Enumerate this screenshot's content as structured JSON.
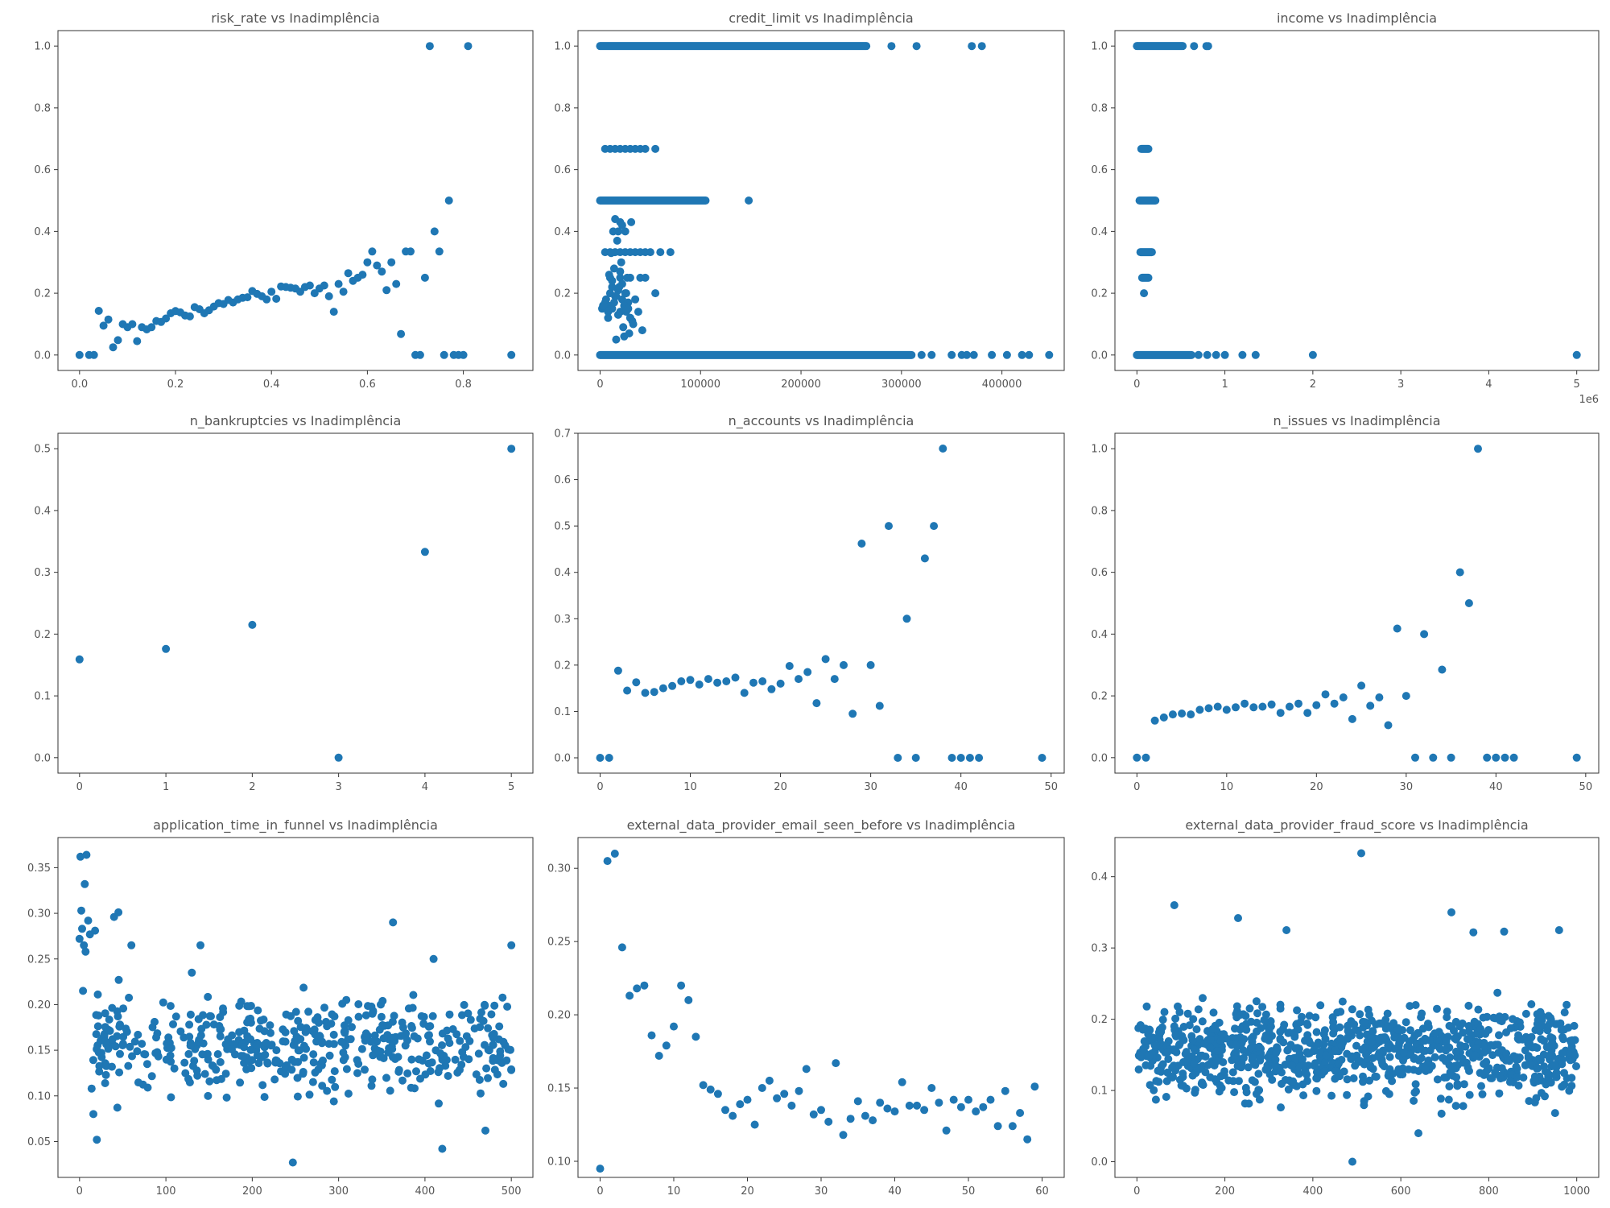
{
  "colors": {
    "marker": "#1f77b4",
    "text": "#555555"
  },
  "chart_data": [
    {
      "type": "scatter",
      "title": "risk_rate vs Inadimplência",
      "xlim": [
        -0.045,
        0.945
      ],
      "ylim": [
        -0.05,
        1.05
      ],
      "xticks": [
        "0.0",
        "0.2",
        "0.4",
        "0.6",
        "0.8"
      ],
      "xtick_values": [
        0,
        0.2,
        0.4,
        0.6,
        0.8
      ],
      "yticks": [
        "0.0",
        "0.2",
        "0.4",
        "0.6",
        "0.8",
        "1.0"
      ],
      "ytick_values": [
        0,
        0.2,
        0.4,
        0.6,
        0.8,
        1.0
      ],
      "x": [
        0,
        0.02,
        0.03,
        0.04,
        0.05,
        0.06,
        0.07,
        0.08,
        0.09,
        0.1,
        0.11,
        0.12,
        0.13,
        0.14,
        0.15,
        0.16,
        0.17,
        0.18,
        0.19,
        0.2,
        0.21,
        0.22,
        0.23,
        0.24,
        0.25,
        0.26,
        0.27,
        0.28,
        0.29,
        0.3,
        0.31,
        0.32,
        0.33,
        0.34,
        0.35,
        0.36,
        0.37,
        0.38,
        0.39,
        0.4,
        0.41,
        0.42,
        0.43,
        0.44,
        0.45,
        0.46,
        0.47,
        0.48,
        0.49,
        0.5,
        0.51,
        0.52,
        0.53,
        0.54,
        0.55,
        0.56,
        0.57,
        0.58,
        0.59,
        0.6,
        0.61,
        0.62,
        0.63,
        0.64,
        0.65,
        0.66,
        0.67,
        0.68,
        0.69,
        0.7,
        0.71,
        0.72,
        0.73,
        0.74,
        0.75,
        0.76,
        0.77,
        0.78,
        0.79,
        0.8,
        0.81,
        0.9
      ],
      "y": [
        0,
        0,
        0,
        0.143,
        0.095,
        0.115,
        0.025,
        0.048,
        0.1,
        0.09,
        0.1,
        0.045,
        0.09,
        0.083,
        0.09,
        0.11,
        0.107,
        0.118,
        0.135,
        0.142,
        0.138,
        0.128,
        0.125,
        0.155,
        0.148,
        0.135,
        0.145,
        0.157,
        0.168,
        0.165,
        0.178,
        0.17,
        0.18,
        0.185,
        0.187,
        0.207,
        0.198,
        0.19,
        0.18,
        0.205,
        0.182,
        0.222,
        0.22,
        0.218,
        0.215,
        0.205,
        0.22,
        0.225,
        0.2,
        0.215,
        0.225,
        0.19,
        0.14,
        0.23,
        0.205,
        0.265,
        0.24,
        0.25,
        0.26,
        0.3,
        0.335,
        0.29,
        0.27,
        0.21,
        0.3,
        0.23,
        0.068,
        0.335,
        0.335,
        0,
        0,
        0.25,
        1.0,
        0.4,
        0.335,
        0,
        0.5,
        0,
        0,
        0,
        1.0,
        0
      ]
    },
    {
      "type": "scatter",
      "title": "credit_limit vs Inadimplência",
      "xlim": [
        -22000,
        462000
      ],
      "ylim": [
        -0.05,
        1.05
      ],
      "xticks": [
        "0",
        "100000",
        "200000",
        "300000",
        "400000"
      ],
      "xtick_values": [
        0,
        100000,
        200000,
        300000,
        400000
      ],
      "yticks": [
        "0.0",
        "0.2",
        "0.4",
        "0.6",
        "0.8",
        "1.0"
      ],
      "ytick_values": [
        0,
        0.2,
        0.4,
        0.6,
        0.8,
        1.0
      ],
      "bands": [
        {
          "y": 1.0,
          "x_from": 0,
          "x_to": 265000
        },
        {
          "y": 0.5,
          "x_from": 0,
          "x_to": 105000
        },
        {
          "y": 0.0,
          "x_from": 0,
          "x_to": 310000
        }
      ],
      "x": [
        290000,
        315000,
        370000,
        380000,
        5000,
        10000,
        15000,
        20000,
        25000,
        30000,
        35000,
        40000,
        45000,
        55000,
        148000,
        5000,
        10000,
        15000,
        20000,
        25000,
        30000,
        35000,
        40000,
        45000,
        50000,
        60000,
        70000,
        10000,
        20000,
        30000,
        40000,
        45000,
        13000,
        18000,
        25000,
        15000,
        20000,
        22000,
        55000,
        5000,
        8000,
        12000,
        15000,
        18000,
        20000,
        22000,
        25000,
        28000,
        30000,
        2000,
        4000,
        6000,
        8000,
        10000,
        12000,
        14000,
        16000,
        18000,
        20000,
        22000,
        24000,
        26000,
        28000,
        30000,
        32000,
        3000,
        9000,
        14000,
        21000,
        27000,
        33000,
        11000,
        19000,
        26000,
        38000,
        16000,
        23000,
        42000,
        35000,
        17000,
        31000,
        8000,
        12000,
        24000,
        29000,
        350000,
        360000,
        365000,
        372000,
        390000,
        405000,
        420000,
        427000,
        447000,
        320000,
        330000
      ],
      "y": [
        1,
        1,
        1,
        1,
        0.667,
        0.667,
        0.667,
        0.667,
        0.667,
        0.667,
        0.667,
        0.667,
        0.667,
        0.667,
        0.5,
        0.333,
        0.333,
        0.333,
        0.333,
        0.333,
        0.333,
        0.333,
        0.333,
        0.333,
        0.333,
        0.333,
        0.333,
        0.25,
        0.25,
        0.25,
        0.25,
        0.25,
        0.4,
        0.4,
        0.4,
        0.44,
        0.43,
        0.42,
        0.2,
        0.17,
        0.16,
        0.15,
        0.19,
        0.21,
        0.14,
        0.18,
        0.2,
        0.17,
        0.12,
        0.15,
        0.16,
        0.18,
        0.14,
        0.2,
        0.22,
        0.17,
        0.19,
        0.13,
        0.27,
        0.23,
        0.16,
        0.2,
        0.15,
        0.12,
        0.11,
        0.16,
        0.26,
        0.28,
        0.3,
        0.25,
        0.1,
        0.33,
        0.22,
        0.14,
        0.14,
        0.05,
        0.09,
        0.08,
        0.18,
        0.37,
        0.43,
        0.12,
        0.24,
        0.06,
        0.07,
        0,
        0,
        0,
        0,
        0,
        0,
        0,
        0,
        0,
        0,
        0
      ]
    },
    {
      "type": "scatter",
      "title": "income vs Inadimplência",
      "xlim": [
        -250000,
        5250000
      ],
      "ylim": [
        -0.05,
        1.05
      ],
      "xticks": [
        "0",
        "1",
        "2",
        "3",
        "4",
        "5"
      ],
      "xtick_values": [
        0,
        1000000,
        2000000,
        3000000,
        4000000,
        5000000
      ],
      "xscale_label": "1e6",
      "yticks": [
        "0.0",
        "0.2",
        "0.4",
        "0.6",
        "0.8",
        "1.0"
      ],
      "ytick_values": [
        0,
        0.2,
        0.4,
        0.6,
        0.8,
        1.0
      ],
      "bands": [
        {
          "y": 1.0,
          "x_from": 0,
          "x_to": 520000
        },
        {
          "y": 0.0,
          "x_from": 0,
          "x_to": 620000
        },
        {
          "y": 0.5,
          "x_from": 30000,
          "x_to": 210000
        },
        {
          "y": 0.667,
          "x_from": 50000,
          "x_to": 130000
        },
        {
          "y": 0.333,
          "x_from": 40000,
          "x_to": 170000
        },
        {
          "y": 0.25,
          "x_from": 60000,
          "x_to": 130000
        }
      ],
      "x": [
        650000,
        790000,
        810000,
        80000,
        700000,
        800000,
        900000,
        1000000,
        1200000,
        1350000,
        2000000,
        5000000
      ],
      "y": [
        1,
        1,
        1,
        0.2,
        0,
        0,
        0,
        0,
        0,
        0,
        0,
        0
      ]
    },
    {
      "type": "scatter",
      "title": "n_bankruptcies vs Inadimplência",
      "xlim": [
        -0.25,
        5.25
      ],
      "ylim": [
        -0.025,
        0.525
      ],
      "xticks": [
        "0",
        "1",
        "2",
        "3",
        "4",
        "5"
      ],
      "xtick_values": [
        0,
        1,
        2,
        3,
        4,
        5
      ],
      "yticks": [
        "0.0",
        "0.1",
        "0.2",
        "0.3",
        "0.4",
        "0.5"
      ],
      "ytick_values": [
        0,
        0.1,
        0.2,
        0.3,
        0.4,
        0.5
      ],
      "x": [
        0,
        1,
        2,
        3,
        4,
        5
      ],
      "y": [
        0.159,
        0.176,
        0.215,
        0,
        0.333,
        0.5
      ]
    },
    {
      "type": "scatter",
      "title": "n_accounts vs Inadimplência",
      "xlim": [
        -2.45,
        51.45
      ],
      "ylim": [
        -0.033,
        0.7
      ],
      "xticks": [
        "0",
        "10",
        "20",
        "30",
        "40",
        "50"
      ],
      "xtick_values": [
        0,
        10,
        20,
        30,
        40,
        50
      ],
      "yticks": [
        "0.0",
        "0.1",
        "0.2",
        "0.3",
        "0.4",
        "0.5",
        "0.6",
        "0.7"
      ],
      "ytick_values": [
        0,
        0.1,
        0.2,
        0.3,
        0.4,
        0.5,
        0.6,
        0.7
      ],
      "x": [
        0,
        1,
        2,
        3,
        4,
        5,
        6,
        7,
        8,
        9,
        10,
        11,
        12,
        13,
        14,
        15,
        16,
        17,
        18,
        19,
        20,
        21,
        22,
        23,
        24,
        25,
        26,
        27,
        28,
        29,
        30,
        31,
        32,
        33,
        34,
        35,
        36,
        37,
        38,
        39,
        40,
        41,
        42,
        49
      ],
      "y": [
        0,
        0,
        0.188,
        0.145,
        0.163,
        0.14,
        0.142,
        0.15,
        0.155,
        0.165,
        0.168,
        0.158,
        0.17,
        0.162,
        0.165,
        0.173,
        0.14,
        0.162,
        0.165,
        0.148,
        0.16,
        0.198,
        0.17,
        0.185,
        0.118,
        0.213,
        0.17,
        0.2,
        0.095,
        0.462,
        0.2,
        0.112,
        0.5,
        0,
        0.3,
        0,
        0.43,
        0.5,
        0.667,
        0,
        0,
        0,
        0,
        0
      ]
    },
    {
      "type": "scatter",
      "title": "n_issues vs Inadimplência",
      "xlim": [
        -2.45,
        51.45
      ],
      "ylim": [
        -0.05,
        1.05
      ],
      "xticks": [
        "0",
        "10",
        "20",
        "30",
        "40",
        "50"
      ],
      "xtick_values": [
        0,
        10,
        20,
        30,
        40,
        50
      ],
      "yticks": [
        "0.0",
        "0.2",
        "0.4",
        "0.6",
        "0.8",
        "1.0"
      ],
      "ytick_values": [
        0,
        0.2,
        0.4,
        0.6,
        0.8,
        1.0
      ],
      "x": [
        0,
        1,
        2,
        3,
        4,
        5,
        6,
        7,
        8,
        9,
        10,
        11,
        12,
        13,
        14,
        15,
        16,
        17,
        18,
        19,
        20,
        21,
        22,
        23,
        24,
        25,
        26,
        27,
        28,
        29,
        30,
        31,
        32,
        33,
        34,
        35,
        36,
        37,
        38,
        39,
        40,
        41,
        42,
        49
      ],
      "y": [
        0,
        0,
        0.12,
        0.13,
        0.14,
        0.143,
        0.14,
        0.155,
        0.16,
        0.165,
        0.155,
        0.163,
        0.175,
        0.163,
        0.165,
        0.172,
        0.145,
        0.165,
        0.175,
        0.145,
        0.17,
        0.205,
        0.175,
        0.195,
        0.125,
        0.233,
        0.168,
        0.195,
        0.105,
        0.418,
        0.2,
        0,
        0.4,
        0,
        0.285,
        0,
        0.6,
        0.5,
        1.0,
        0,
        0,
        0,
        0,
        0
      ]
    },
    {
      "type": "scatter",
      "title": "application_time_in_funnel vs Inadimplência",
      "xlim": [
        -25,
        525
      ],
      "ylim": [
        0.0107,
        0.383
      ],
      "xticks": [
        "0",
        "100",
        "200",
        "300",
        "400",
        "500"
      ],
      "xtick_values": [
        0,
        100,
        200,
        300,
        400,
        500
      ],
      "yticks": [
        "0.05",
        "0.10",
        "0.15",
        "0.20",
        "0.25",
        "0.30",
        "0.35"
      ],
      "ytick_values": [
        0.05,
        0.1,
        0.15,
        0.2,
        0.25,
        0.3,
        0.35
      ],
      "cloud": {
        "n": 480,
        "x_from": 10,
        "x_to": 500,
        "y_center": 0.155,
        "y_spread": 0.042,
        "seed": 11
      },
      "x": [
        0,
        1,
        2,
        3,
        4,
        5,
        6,
        7,
        8,
        10,
        12,
        14,
        16,
        18,
        20,
        22,
        40,
        45,
        60,
        130,
        140,
        247,
        363,
        420,
        500,
        470,
        410
      ],
      "y": [
        0.272,
        0.362,
        0.303,
        0.283,
        0.215,
        0.265,
        0.332,
        0.258,
        0.364,
        0.292,
        0.277,
        0.108,
        0.08,
        0.281,
        0.052,
        0.188,
        0.296,
        0.301,
        0.265,
        0.235,
        0.265,
        0.027,
        0.29,
        0.042,
        0.265,
        0.062,
        0.25
      ]
    },
    {
      "type": "scatter",
      "title": "external_data_provider_email_seen_before vs Inadimplência",
      "xlim": [
        -3,
        63
      ],
      "ylim": [
        0.089,
        0.321
      ],
      "xticks": [
        "0",
        "10",
        "20",
        "30",
        "40",
        "50",
        "60"
      ],
      "xtick_values": [
        0,
        10,
        20,
        30,
        40,
        50,
        60
      ],
      "yticks": [
        "0.10",
        "0.15",
        "0.20",
        "0.25",
        "0.30"
      ],
      "ytick_values": [
        0.1,
        0.15,
        0.2,
        0.25,
        0.3
      ],
      "x": [
        0,
        1,
        2,
        3,
        4,
        5,
        6,
        7,
        8,
        9,
        10,
        11,
        12,
        13,
        14,
        15,
        16,
        17,
        18,
        19,
        20,
        21,
        22,
        23,
        24,
        25,
        26,
        27,
        28,
        29,
        30,
        31,
        32,
        33,
        34,
        35,
        36,
        37,
        38,
        39,
        40,
        41,
        42,
        43,
        44,
        45,
        46,
        47,
        48,
        49,
        50,
        51,
        52,
        53,
        54,
        55,
        56,
        57,
        58,
        59
      ],
      "y": [
        0.095,
        0.305,
        0.31,
        0.246,
        0.213,
        0.218,
        0.22,
        0.186,
        0.172,
        0.179,
        0.192,
        0.22,
        0.21,
        0.185,
        0.152,
        0.149,
        0.146,
        0.135,
        0.131,
        0.139,
        0.142,
        0.125,
        0.15,
        0.155,
        0.143,
        0.146,
        0.138,
        0.148,
        0.163,
        0.132,
        0.135,
        0.127,
        0.167,
        0.118,
        0.129,
        0.141,
        0.131,
        0.128,
        0.14,
        0.136,
        0.134,
        0.154,
        0.138,
        0.138,
        0.135,
        0.15,
        0.14,
        0.121,
        0.142,
        0.137,
        0.142,
        0.134,
        0.137,
        0.142,
        0.124,
        0.148,
        0.124,
        0.133,
        0.115,
        0.151
      ]
    },
    {
      "type": "scatter",
      "title": "external_data_provider_fraud_score vs Inadimplência",
      "xlim": [
        -50,
        1050
      ],
      "ylim": [
        -0.022,
        0.455
      ],
      "xticks": [
        "0",
        "200",
        "400",
        "600",
        "800",
        "1000"
      ],
      "xtick_values": [
        0,
        200,
        400,
        600,
        800,
        1000
      ],
      "yticks": [
        "0.0",
        "0.1",
        "0.2",
        "0.3",
        "0.4"
      ],
      "ytick_values": [
        0,
        0.1,
        0.2,
        0.3,
        0.4
      ],
      "cloud": {
        "n": 950,
        "x_from": 0,
        "x_to": 1000,
        "y_center": 0.155,
        "y_spread": 0.05,
        "seed": 29
      },
      "x": [
        510,
        85,
        715,
        765,
        835,
        960,
        230,
        340,
        490,
        640
      ],
      "y": [
        0.433,
        0.36,
        0.35,
        0.322,
        0.323,
        0.325,
        0.342,
        0.325,
        0,
        0.04
      ]
    }
  ]
}
